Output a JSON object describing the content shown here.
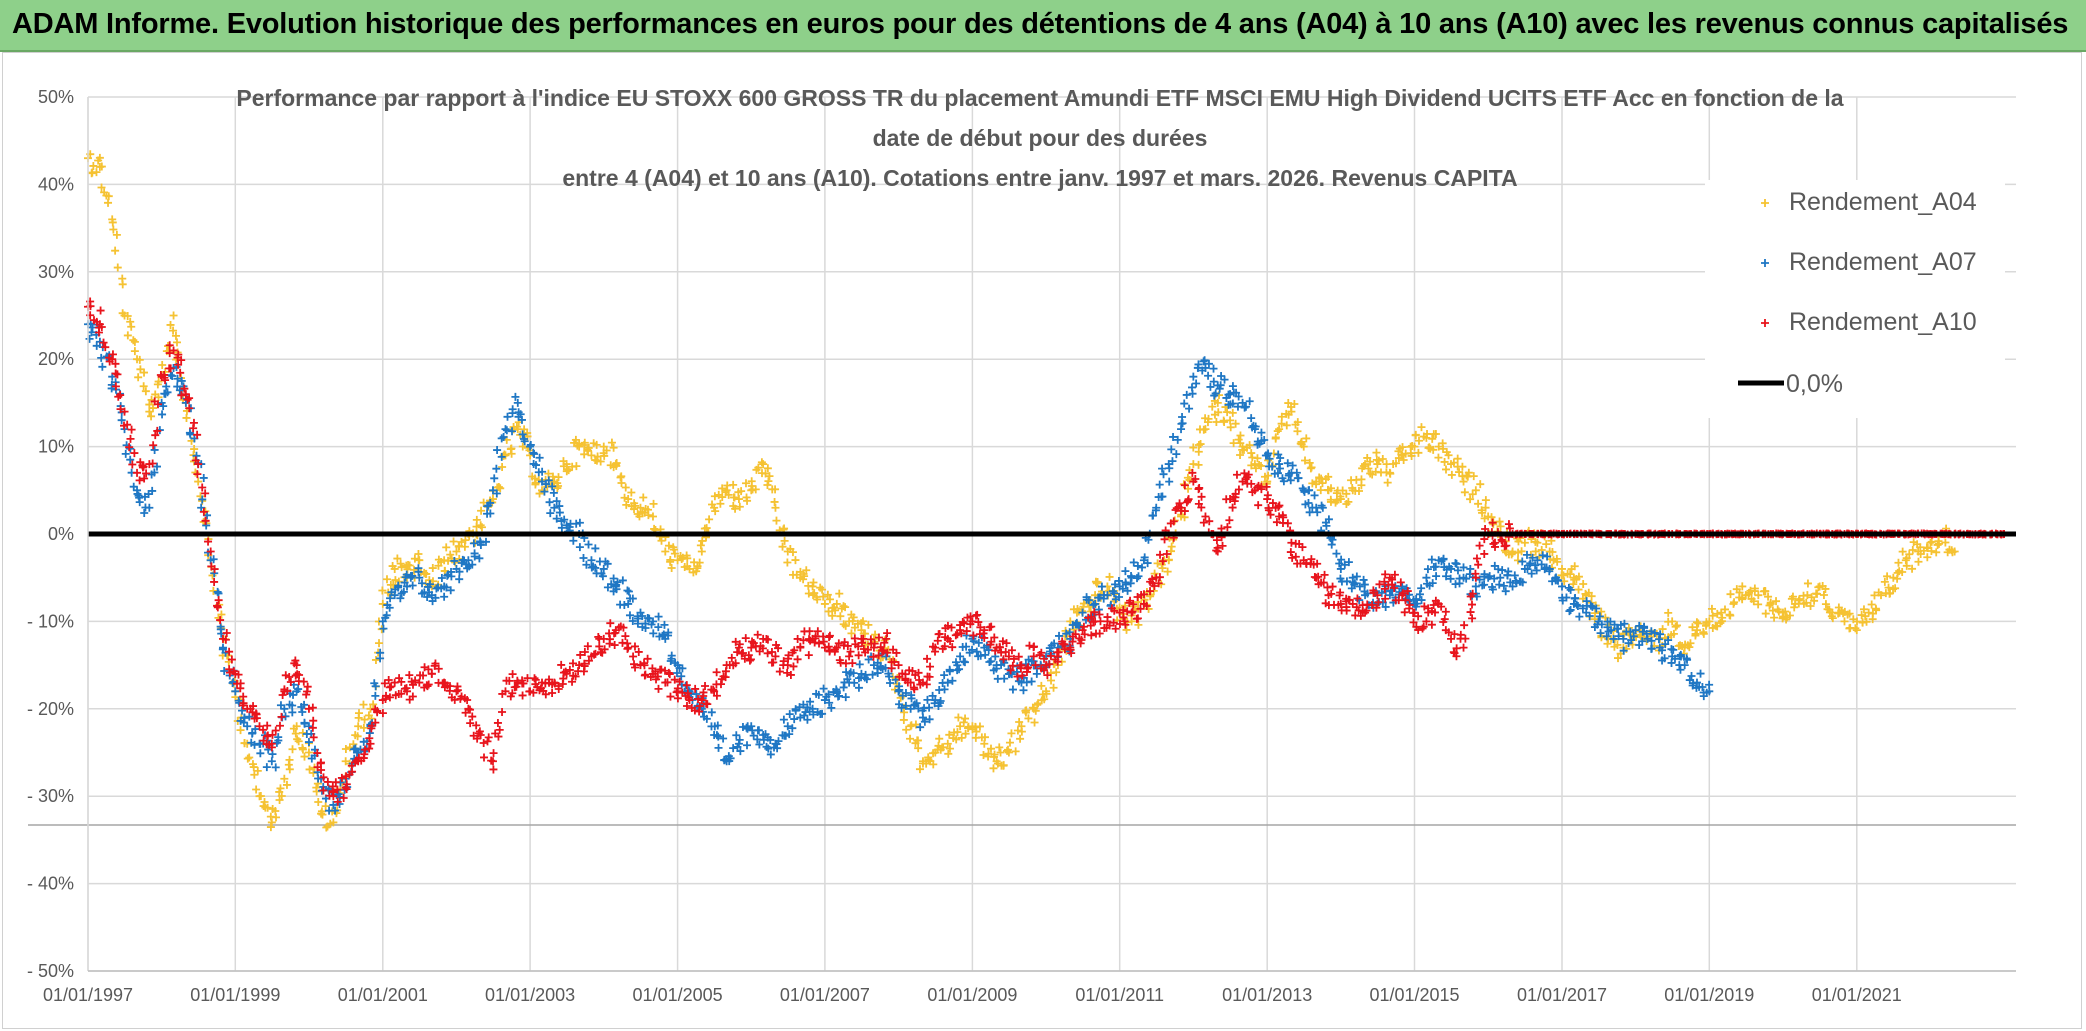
{
  "banner": {
    "title": "ADAM Informe. Evolution historique des performances en euros pour des détentions de 4 ans (A04) à 10 ans (A10) avec les revenus connus capitalisés"
  },
  "chart_data": {
    "type": "scatter",
    "title_lines": [
      "Performance par rapport à l'indice EU STOXX 600 GROSS TR  du placement Amundi ETF MSCI EMU High Dividend UCITS ETF Acc en fonction de la",
      "date de début pour des durées",
      "entre 4 (A04) et 10 ans (A10). Cotations entre janv. 1997 et mars. 2026. Revenus CAPITA"
    ],
    "xlabel": "",
    "ylabel": "",
    "x_tick_labels": [
      "01/01/1997",
      "01/01/1999",
      "01/01/2001",
      "01/01/2003",
      "01/01/2005",
      "01/01/2007",
      "01/01/2009",
      "01/01/2011",
      "01/01/2013",
      "01/01/2015",
      "01/01/2017",
      "01/01/2019",
      "01/01/2021"
    ],
    "y_tick_labels": [
      "50%",
      "40%",
      "30%",
      "20%",
      "10%",
      "0%",
      "- 10%",
      "- 20%",
      "- 30%",
      "- 40%",
      "- 50%"
    ],
    "y_tick_values": [
      50,
      40,
      30,
      20,
      10,
      0,
      -10,
      -20,
      -30,
      -40,
      -50
    ],
    "xlim": [
      "1997-01-01",
      "2023-03-01"
    ],
    "ylim": [
      -50,
      50
    ],
    "grid": true,
    "legend_position": "top-right",
    "colors": {
      "A04": "#f5c232",
      "A07": "#1f77c4",
      "A10": "#e8141c",
      "zero": "#000000"
    },
    "series": [
      {
        "name": "Rendement_A04",
        "key": "A04",
        "x": [
          "1997-01-01",
          "1997-03-01",
          "1997-05-01",
          "1997-07-01",
          "1997-09-01",
          "1997-11-01",
          "1998-01-01",
          "1998-03-01",
          "1998-05-01",
          "1998-07-01",
          "1998-09-01",
          "1998-11-01",
          "1999-01-01",
          "1999-03-01",
          "1999-05-01",
          "1999-07-01",
          "1999-09-01",
          "1999-11-01",
          "2000-01-01",
          "2000-03-01",
          "2000-05-01",
          "2000-07-01",
          "2000-09-01",
          "2000-11-01",
          "2001-01-01",
          "2001-03-01",
          "2001-05-01",
          "2001-07-01",
          "2001-09-01",
          "2001-11-01",
          "2002-01-01",
          "2002-03-01",
          "2002-05-01",
          "2002-07-01",
          "2002-09-01",
          "2002-11-01",
          "2003-01-01",
          "2003-03-01",
          "2003-05-01",
          "2003-07-01",
          "2003-09-01",
          "2003-11-01",
          "2004-01-01",
          "2004-03-01",
          "2004-05-01",
          "2004-07-01",
          "2004-09-01",
          "2004-11-01",
          "2005-01-01",
          "2005-03-01",
          "2005-05-01",
          "2005-07-01",
          "2005-09-01",
          "2005-11-01",
          "2006-01-01",
          "2006-03-01",
          "2006-05-01",
          "2006-07-01",
          "2006-09-01",
          "2006-11-01",
          "2007-01-01",
          "2007-03-01",
          "2007-05-01",
          "2007-07-01",
          "2007-09-01",
          "2007-11-01",
          "2008-01-01",
          "2008-03-01",
          "2008-05-01",
          "2008-07-01",
          "2008-09-01",
          "2008-11-01",
          "2009-01-01",
          "2009-03-01",
          "2009-05-01",
          "2009-07-01",
          "2009-09-01",
          "2009-11-01",
          "2010-01-01",
          "2010-03-01",
          "2010-05-01",
          "2010-07-01",
          "2010-09-01",
          "2010-11-01",
          "2011-01-01",
          "2011-03-01",
          "2011-05-01",
          "2011-07-01",
          "2011-09-01",
          "2011-11-01",
          "2012-01-01",
          "2012-03-01",
          "2012-05-01",
          "2012-07-01",
          "2012-09-01",
          "2012-11-01",
          "2013-01-01",
          "2013-03-01",
          "2013-05-01",
          "2013-07-01",
          "2013-09-01",
          "2013-11-01",
          "2014-01-01",
          "2014-03-01",
          "2014-05-01",
          "2014-07-01",
          "2014-09-01",
          "2014-11-01",
          "2015-01-01",
          "2015-03-01",
          "2015-05-01",
          "2015-07-01",
          "2015-09-01",
          "2015-11-01",
          "2016-01-01",
          "2016-03-01",
          "2016-05-01",
          "2016-07-01",
          "2016-09-01",
          "2016-11-01",
          "2017-01-01",
          "2017-03-01",
          "2017-05-01",
          "2017-07-01",
          "2017-09-01",
          "2017-11-01",
          "2018-01-01",
          "2018-03-01",
          "2018-05-01",
          "2018-07-01",
          "2018-09-01",
          "2018-11-01",
          "2019-01-01",
          "2019-03-01",
          "2019-05-01",
          "2019-07-01",
          "2019-09-01",
          "2019-11-01",
          "2020-01-01",
          "2020-03-01",
          "2020-05-01",
          "2020-07-01",
          "2020-09-01",
          "2020-11-01",
          "2021-01-01",
          "2021-03-01",
          "2021-05-01",
          "2021-07-01",
          "2021-09-01",
          "2021-11-01",
          "2022-01-01",
          "2022-03-01",
          "2022-05-01"
        ],
        "y": [
          43,
          42,
          36,
          25,
          20,
          14,
          18,
          25,
          15,
          6,
          -3,
          -12,
          -18,
          -24,
          -30,
          -33,
          -28,
          -22,
          -25,
          -32,
          -33,
          -26,
          -22,
          -20,
          -8,
          -4,
          -5,
          -3,
          -6,
          -3,
          -2,
          0,
          1,
          4,
          9,
          12,
          9,
          5,
          6,
          8,
          10,
          9,
          10,
          8,
          4,
          3,
          2,
          -2,
          -3,
          -4,
          -2,
          3,
          5,
          4,
          5,
          8,
          3,
          -2,
          -5,
          -6,
          -8,
          -8,
          -10,
          -11,
          -12,
          -14,
          -18,
          -22,
          -26,
          -25,
          -24,
          -22,
          -22,
          -24,
          -26,
          -25,
          -22,
          -20,
          -18,
          -15,
          -10,
          -9,
          -7,
          -6,
          -9,
          -10,
          -8,
          -5,
          -3,
          2,
          8,
          12,
          15,
          13,
          10,
          8,
          6,
          12,
          14,
          10,
          6,
          5,
          4,
          5,
          8,
          8,
          7,
          9,
          10,
          11,
          10,
          8,
          6,
          5,
          2,
          0,
          -2,
          -1,
          -1,
          -2,
          -4,
          -5,
          -7,
          -10,
          -12,
          -13,
          -11,
          -12,
          -12,
          -10,
          -13,
          -11,
          -10,
          -9,
          -8,
          -7,
          -7,
          -8,
          -9,
          -8,
          -7,
          -6,
          -9,
          -10,
          -11,
          -9,
          -7,
          -5,
          -3,
          -2,
          -1,
          0,
          -2
        ]
      },
      {
        "name": "Rendement_A07",
        "key": "A07",
        "x": [
          "1997-01-01",
          "1997-03-01",
          "1997-05-01",
          "1997-07-01",
          "1997-09-01",
          "1997-11-01",
          "1998-01-01",
          "1998-03-01",
          "1998-05-01",
          "1998-07-01",
          "1998-09-01",
          "1998-11-01",
          "1999-01-01",
          "1999-03-01",
          "1999-05-01",
          "1999-07-01",
          "1999-09-01",
          "1999-11-01",
          "2000-01-01",
          "2000-03-01",
          "2000-05-01",
          "2000-07-01",
          "2000-09-01",
          "2000-11-01",
          "2001-01-01",
          "2001-03-01",
          "2001-05-01",
          "2001-07-01",
          "2001-09-01",
          "2001-11-01",
          "2002-01-01",
          "2002-03-01",
          "2002-05-01",
          "2002-07-01",
          "2002-09-01",
          "2002-11-01",
          "2003-01-01",
          "2003-03-01",
          "2003-05-01",
          "2003-07-01",
          "2003-09-01",
          "2003-11-01",
          "2004-01-01",
          "2004-03-01",
          "2004-05-01",
          "2004-07-01",
          "2004-09-01",
          "2004-11-01",
          "2005-01-01",
          "2005-03-01",
          "2005-05-01",
          "2005-07-01",
          "2005-09-01",
          "2005-11-01",
          "2006-01-01",
          "2006-03-01",
          "2006-05-01",
          "2006-07-01",
          "2006-09-01",
          "2006-11-01",
          "2007-01-01",
          "2007-03-01",
          "2007-05-01",
          "2007-07-01",
          "2007-09-01",
          "2007-11-01",
          "2008-01-01",
          "2008-03-01",
          "2008-05-01",
          "2008-07-01",
          "2008-09-01",
          "2008-11-01",
          "2009-01-01",
          "2009-03-01",
          "2009-05-01",
          "2009-07-01",
          "2009-09-01",
          "2009-11-01",
          "2010-01-01",
          "2010-03-01",
          "2010-05-01",
          "2010-07-01",
          "2010-09-01",
          "2010-11-01",
          "2011-01-01",
          "2011-03-01",
          "2011-05-01",
          "2011-07-01",
          "2011-09-01",
          "2011-11-01",
          "2012-01-01",
          "2012-03-01",
          "2012-05-01",
          "2012-07-01",
          "2012-09-01",
          "2012-11-01",
          "2013-01-01",
          "2013-03-01",
          "2013-05-01",
          "2013-07-01",
          "2013-09-01",
          "2013-11-01",
          "2014-01-01",
          "2014-03-01",
          "2014-05-01",
          "2014-07-01",
          "2014-09-01",
          "2014-11-01",
          "2015-01-01",
          "2015-03-01",
          "2015-05-01",
          "2015-07-01",
          "2015-09-01",
          "2015-11-01",
          "2016-01-01",
          "2016-03-01",
          "2016-05-01",
          "2016-07-01",
          "2016-09-01",
          "2016-11-01",
          "2017-01-01",
          "2017-03-01",
          "2017-05-01",
          "2017-07-01",
          "2017-09-01",
          "2017-11-01",
          "2018-01-01",
          "2018-03-01",
          "2018-05-01",
          "2018-07-01",
          "2018-09-01",
          "2018-11-01",
          "2019-01-01"
        ],
        "y": [
          24,
          22,
          18,
          12,
          5,
          3,
          15,
          19,
          15,
          8,
          -3,
          -13,
          -18,
          -22,
          -24,
          -26,
          -20,
          -18,
          -22,
          -28,
          -31,
          -28,
          -25,
          -22,
          -10,
          -7,
          -6,
          -5,
          -7,
          -6,
          -4,
          -3,
          -1,
          5,
          12,
          15,
          10,
          6,
          3,
          1,
          0,
          -3,
          -4,
          -6,
          -8,
          -9,
          -10,
          -12,
          -15,
          -18,
          -20,
          -23,
          -26,
          -24,
          -22,
          -23,
          -24,
          -22,
          -21,
          -20,
          -19,
          -18,
          -17,
          -16,
          -15,
          -14,
          -18,
          -20,
          -21,
          -19,
          -17,
          -14,
          -12,
          -13,
          -15,
          -16,
          -17,
          -15,
          -14,
          -13,
          -12,
          -9,
          -8,
          -7,
          -6,
          -5,
          -3,
          3,
          8,
          12,
          18,
          19,
          17,
          16,
          15,
          12,
          9,
          8,
          7,
          5,
          3,
          0,
          -4,
          -5,
          -7,
          -8,
          -7,
          -6,
          -8,
          -5,
          -3,
          -4,
          -5,
          -6,
          -5,
          -5,
          -6,
          -4,
          -3,
          -4,
          -6,
          -8,
          -9,
          -10,
          -11,
          -12,
          -11,
          -12,
          -13,
          -14,
          -15,
          -17,
          -18
        ]
      },
      {
        "name": "Rendement_A10",
        "key": "A10",
        "x": [
          "1997-01-01",
          "1997-03-01",
          "1997-05-01",
          "1997-07-01",
          "1997-09-01",
          "1997-11-01",
          "1998-01-01",
          "1998-03-01",
          "1998-05-01",
          "1998-07-01",
          "1998-09-01",
          "1998-11-01",
          "1999-01-01",
          "1999-03-01",
          "1999-05-01",
          "1999-07-01",
          "1999-09-01",
          "1999-11-01",
          "2000-01-01",
          "2000-03-01",
          "2000-05-01",
          "2000-07-01",
          "2000-09-01",
          "2000-11-01",
          "2001-01-01",
          "2001-03-01",
          "2001-05-01",
          "2001-07-01",
          "2001-09-01",
          "2001-11-01",
          "2002-01-01",
          "2002-03-01",
          "2002-05-01",
          "2002-07-01",
          "2002-09-01",
          "2002-11-01",
          "2003-01-01",
          "2003-03-01",
          "2003-05-01",
          "2003-07-01",
          "2003-09-01",
          "2003-11-01",
          "2004-01-01",
          "2004-03-01",
          "2004-05-01",
          "2004-07-01",
          "2004-09-01",
          "2004-11-01",
          "2005-01-01",
          "2005-03-01",
          "2005-05-01",
          "2005-07-01",
          "2005-09-01",
          "2005-11-01",
          "2006-01-01",
          "2006-03-01",
          "2006-05-01",
          "2006-07-01",
          "2006-09-01",
          "2006-11-01",
          "2007-01-01",
          "2007-03-01",
          "2007-05-01",
          "2007-07-01",
          "2007-09-01",
          "2007-11-01",
          "2008-01-01",
          "2008-03-01",
          "2008-05-01",
          "2008-07-01",
          "2008-09-01",
          "2008-11-01",
          "2009-01-01",
          "2009-03-01",
          "2009-05-01",
          "2009-07-01",
          "2009-09-01",
          "2009-11-01",
          "2010-01-01",
          "2010-03-01",
          "2010-05-01",
          "2010-07-01",
          "2010-09-01",
          "2010-11-01",
          "2011-01-01",
          "2011-03-01",
          "2011-05-01",
          "2011-07-01",
          "2011-09-01",
          "2011-11-01",
          "2012-01-01",
          "2012-03-01",
          "2012-05-01",
          "2012-07-01",
          "2012-09-01",
          "2012-11-01",
          "2013-01-01",
          "2013-03-01",
          "2013-05-01",
          "2013-07-01",
          "2013-09-01",
          "2013-11-01",
          "2014-01-01",
          "2014-03-01",
          "2014-05-01",
          "2014-07-01",
          "2014-09-01",
          "2014-11-01",
          "2015-01-01",
          "2015-03-01",
          "2015-05-01",
          "2015-07-01",
          "2015-09-01",
          "2015-11-01",
          "2016-01-01",
          "2016-03-01",
          "2016-05-01",
          "2016-07-01",
          "2016-09-01",
          "2016-11-01",
          "2017-01-01",
          "2017-03-01",
          "2017-05-01",
          "2017-07-01",
          "2017-09-01",
          "2017-11-01",
          "2018-01-01",
          "2018-03-01",
          "2018-05-01",
          "2018-07-01",
          "2018-09-01",
          "2018-11-01",
          "2019-01-01",
          "2019-03-01",
          "2019-05-01",
          "2019-07-01",
          "2019-09-01",
          "2019-11-01",
          "2020-01-01",
          "2020-03-01",
          "2020-05-01",
          "2020-07-01",
          "2020-09-01",
          "2020-11-01",
          "2021-01-01",
          "2021-03-01",
          "2021-05-01",
          "2021-07-01",
          "2021-09-01",
          "2021-11-01",
          "2022-01-01",
          "2022-03-01",
          "2022-05-01",
          "2022-07-01",
          "2022-09-01",
          "2022-11-01",
          "2023-01-01"
        ],
        "y": [
          26,
          24,
          20,
          14,
          7,
          8,
          18,
          21,
          16,
          8,
          -2,
          -12,
          -16,
          -20,
          -22,
          -24,
          -18,
          -15,
          -20,
          -27,
          -30,
          -29,
          -26,
          -24,
          -19,
          -17,
          -18,
          -17,
          -16,
          -17,
          -18,
          -20,
          -23,
          -26,
          -18,
          -17,
          -18,
          -17,
          -17,
          -16,
          -15,
          -14,
          -12,
          -11,
          -13,
          -15,
          -16,
          -17,
          -18,
          -19,
          -19,
          -18,
          -15,
          -13,
          -13,
          -12,
          -14,
          -15,
          -13,
          -12,
          -13,
          -13,
          -14,
          -12,
          -13,
          -12,
          -15,
          -17,
          -17,
          -13,
          -12,
          -11,
          -10,
          -11,
          -13,
          -14,
          -15,
          -14,
          -15,
          -14,
          -13,
          -11,
          -10,
          -10,
          -9,
          -9,
          -8,
          -5,
          0,
          3,
          6,
          2,
          -2,
          4,
          6,
          5,
          4,
          2,
          -1,
          -3,
          -5,
          -7,
          -8,
          -8,
          -9,
          -7,
          -5,
          -7,
          -9,
          -10,
          -8,
          -12,
          -13,
          -5,
          0,
          -0.2,
          0,
          0,
          0,
          0,
          0,
          0,
          0,
          0,
          0,
          0,
          0,
          0,
          0,
          0,
          0,
          0,
          0,
          0,
          0,
          0,
          0,
          0,
          0,
          0,
          0,
          0,
          0,
          0,
          0,
          0,
          0,
          0,
          0,
          0,
          0,
          0,
          0,
          0,
          0,
          0,
          0
        ]
      }
    ],
    "legend_entries": [
      "Rendement_A04",
      "Rendement_A07",
      "Rendement_A10",
      "0,0%"
    ],
    "reference_line": {
      "name": "0,0%",
      "y": 0
    }
  }
}
